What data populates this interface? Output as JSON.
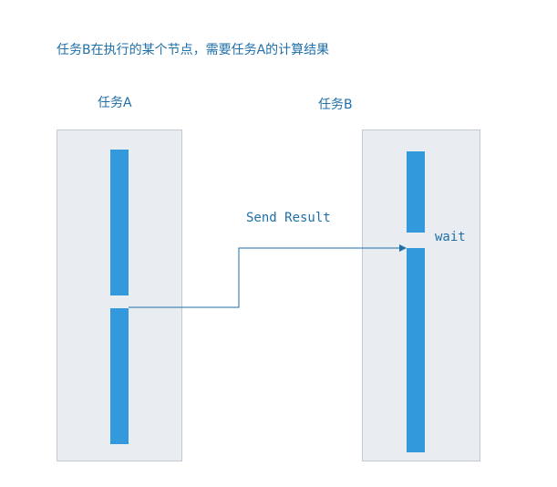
{
  "diagram": {
    "title": "任务B在执行的某个节点，需要任务A的计算结果",
    "lanes": [
      {
        "label": "任务A"
      },
      {
        "label": "任务B"
      }
    ],
    "edge_label": "Send Result",
    "wait_label": "wait",
    "colors": {
      "text": "#1f6fa8",
      "lane_fill": "#e9ecf1",
      "lane_border": "#c4c9d2",
      "activity_bar": "#3399dd",
      "connector": "#1f6fa8"
    }
  }
}
